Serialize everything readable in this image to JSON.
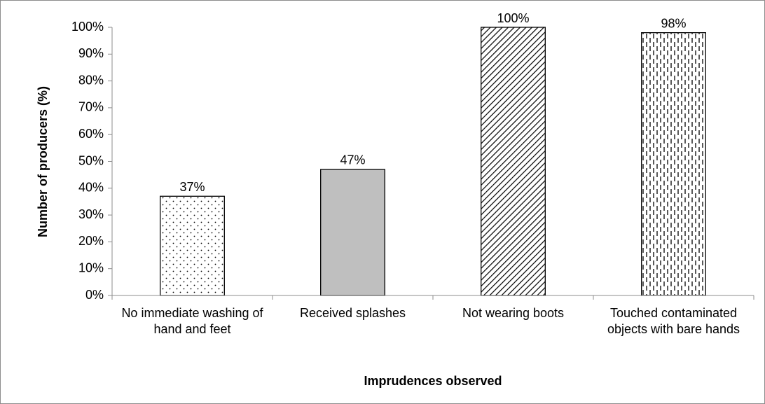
{
  "chart_data": {
    "type": "bar",
    "xlabel": "Imprudences observed",
    "ylabel": "Number of producers (%)",
    "categories": [
      "No immediate washing of hand and feet",
      "Received splashes",
      "Not wearing boots",
      "Touched contaminated objects with bare hands"
    ],
    "values": [
      37,
      47,
      100,
      98
    ],
    "value_labels": [
      "37%",
      "47%",
      "100%",
      "98%"
    ],
    "patterns": [
      "dots",
      "solid",
      "diagonal",
      "dashed-vertical"
    ],
    "color": "#bfbfbf",
    "ylim": [
      0,
      100
    ],
    "yticks": [
      {
        "value": 0,
        "label": "0%"
      },
      {
        "value": 10,
        "label": "10%"
      },
      {
        "value": 20,
        "label": "20%"
      },
      {
        "value": 30,
        "label": "30%"
      },
      {
        "value": 40,
        "label": "40%"
      },
      {
        "value": 50,
        "label": "50%"
      },
      {
        "value": 60,
        "label": "60%"
      },
      {
        "value": 70,
        "label": "70%"
      },
      {
        "value": 80,
        "label": "80%"
      },
      {
        "value": 90,
        "label": "90%"
      },
      {
        "value": 100,
        "label": "100%"
      }
    ],
    "grid": false
  }
}
